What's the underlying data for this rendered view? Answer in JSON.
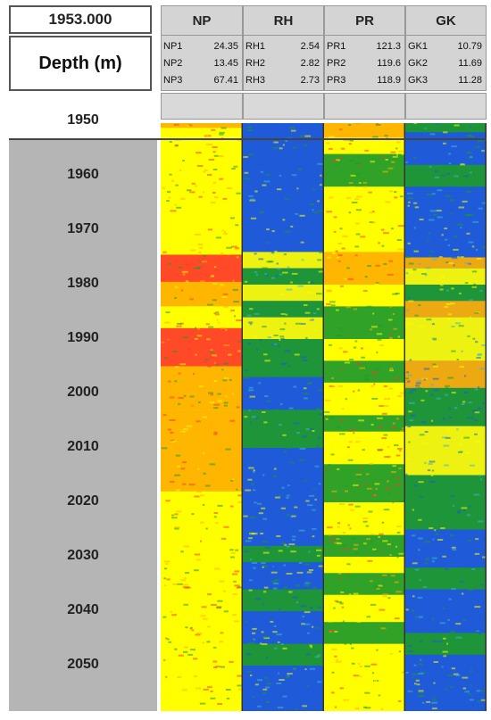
{
  "header": {
    "current_depth": "1953.000",
    "depth_title": "Depth (m)"
  },
  "tracks": [
    {
      "name": "NP",
      "stats": [
        {
          "label": "NP1",
          "value": "24.35"
        },
        {
          "label": "NP2",
          "value": "13.45"
        },
        {
          "label": "NP3",
          "value": "67.41"
        }
      ]
    },
    {
      "name": "RH",
      "stats": [
        {
          "label": "RH1",
          "value": "2.54"
        },
        {
          "label": "RH2",
          "value": "2.82"
        },
        {
          "label": "RH3",
          "value": "2.73"
        }
      ]
    },
    {
      "name": "PR",
      "stats": [
        {
          "label": "PR1",
          "value": "121.3"
        },
        {
          "label": "PR2",
          "value": "119.6"
        },
        {
          "label": "PR3",
          "value": "118.9"
        }
      ]
    },
    {
      "name": "GK",
      "stats": [
        {
          "label": "GK1",
          "value": "10.79"
        },
        {
          "label": "GK2",
          "value": "11.69"
        },
        {
          "label": "GK3",
          "value": "11.28"
        }
      ]
    }
  ],
  "colors": {
    "yellow": "#ffff00",
    "orange": "#ffb000",
    "red": "#ff3a2a",
    "green": "#1e9a2a",
    "blue": "#1f5ad8",
    "depth_bg": "#b5b5b5"
  },
  "chart_data": {
    "type": "heatmap",
    "y_axis": {
      "label": "Depth (m)",
      "range": [
        1947,
        2056
      ],
      "ticks": [
        1950,
        1960,
        1970,
        1980,
        1990,
        2000,
        2010,
        2020,
        2030,
        2040,
        2050
      ]
    },
    "tracks": [
      {
        "name": "NP",
        "base": "yellow",
        "bands": [
          {
            "from": 1949.7,
            "to": 1951.2,
            "color": "orange"
          },
          {
            "from": 1974.5,
            "to": 1979.5,
            "color": "red"
          },
          {
            "from": 1979.5,
            "to": 1984,
            "color": "orange"
          },
          {
            "from": 1984,
            "to": 1988,
            "color": "yellow"
          },
          {
            "from": 1988,
            "to": 1995,
            "color": "red"
          },
          {
            "from": 1995,
            "to": 2003,
            "color": "orange"
          },
          {
            "from": 2003,
            "to": 2018,
            "color": "orange"
          }
        ]
      },
      {
        "name": "RH",
        "base": "blue",
        "bands": [
          {
            "from": 1974,
            "to": 1977,
            "color": "yellow"
          },
          {
            "from": 1977,
            "to": 1980,
            "color": "green"
          },
          {
            "from": 1980,
            "to": 1983,
            "color": "yellow"
          },
          {
            "from": 1983,
            "to": 1986,
            "color": "green"
          },
          {
            "from": 1986,
            "to": 1990,
            "color": "yellow"
          },
          {
            "from": 1990,
            "to": 1997,
            "color": "green"
          },
          {
            "from": 1997,
            "to": 2003,
            "color": "blue"
          },
          {
            "from": 2003,
            "to": 2010,
            "color": "green"
          },
          {
            "from": 2028,
            "to": 2031,
            "color": "green"
          },
          {
            "from": 2036,
            "to": 2040,
            "color": "green"
          },
          {
            "from": 2046,
            "to": 2050,
            "color": "green"
          }
        ]
      },
      {
        "name": "PR",
        "base": "yellow",
        "bands": [
          {
            "from": 1949.7,
            "to": 1953,
            "color": "orange"
          },
          {
            "from": 1956,
            "to": 1962,
            "color": "green"
          },
          {
            "from": 1974,
            "to": 1980,
            "color": "orange"
          },
          {
            "from": 1984,
            "to": 1990,
            "color": "green"
          },
          {
            "from": 1994,
            "to": 1998,
            "color": "green"
          },
          {
            "from": 2004,
            "to": 2007,
            "color": "green"
          },
          {
            "from": 2013,
            "to": 2020,
            "color": "green"
          },
          {
            "from": 2026,
            "to": 2030,
            "color": "green"
          },
          {
            "from": 2033,
            "to": 2037,
            "color": "green"
          },
          {
            "from": 2042,
            "to": 2046,
            "color": "green"
          }
        ]
      },
      {
        "name": "GK",
        "base": "blue",
        "bands": [
          {
            "from": 1949.7,
            "to": 1952,
            "color": "green"
          },
          {
            "from": 1958,
            "to": 1962,
            "color": "green"
          },
          {
            "from": 1975,
            "to": 1977,
            "color": "orange"
          },
          {
            "from": 1977,
            "to": 1980,
            "color": "yellow"
          },
          {
            "from": 1980,
            "to": 1983,
            "color": "green"
          },
          {
            "from": 1983,
            "to": 1986,
            "color": "orange"
          },
          {
            "from": 1986,
            "to": 1994,
            "color": "yellow"
          },
          {
            "from": 1994,
            "to": 1999,
            "color": "orange"
          },
          {
            "from": 1999,
            "to": 2006,
            "color": "green"
          },
          {
            "from": 2006,
            "to": 2015,
            "color": "yellow"
          },
          {
            "from": 2015,
            "to": 2025,
            "color": "green"
          },
          {
            "from": 2032,
            "to": 2036,
            "color": "green"
          },
          {
            "from": 2044,
            "to": 2048,
            "color": "green"
          }
        ]
      }
    ]
  }
}
